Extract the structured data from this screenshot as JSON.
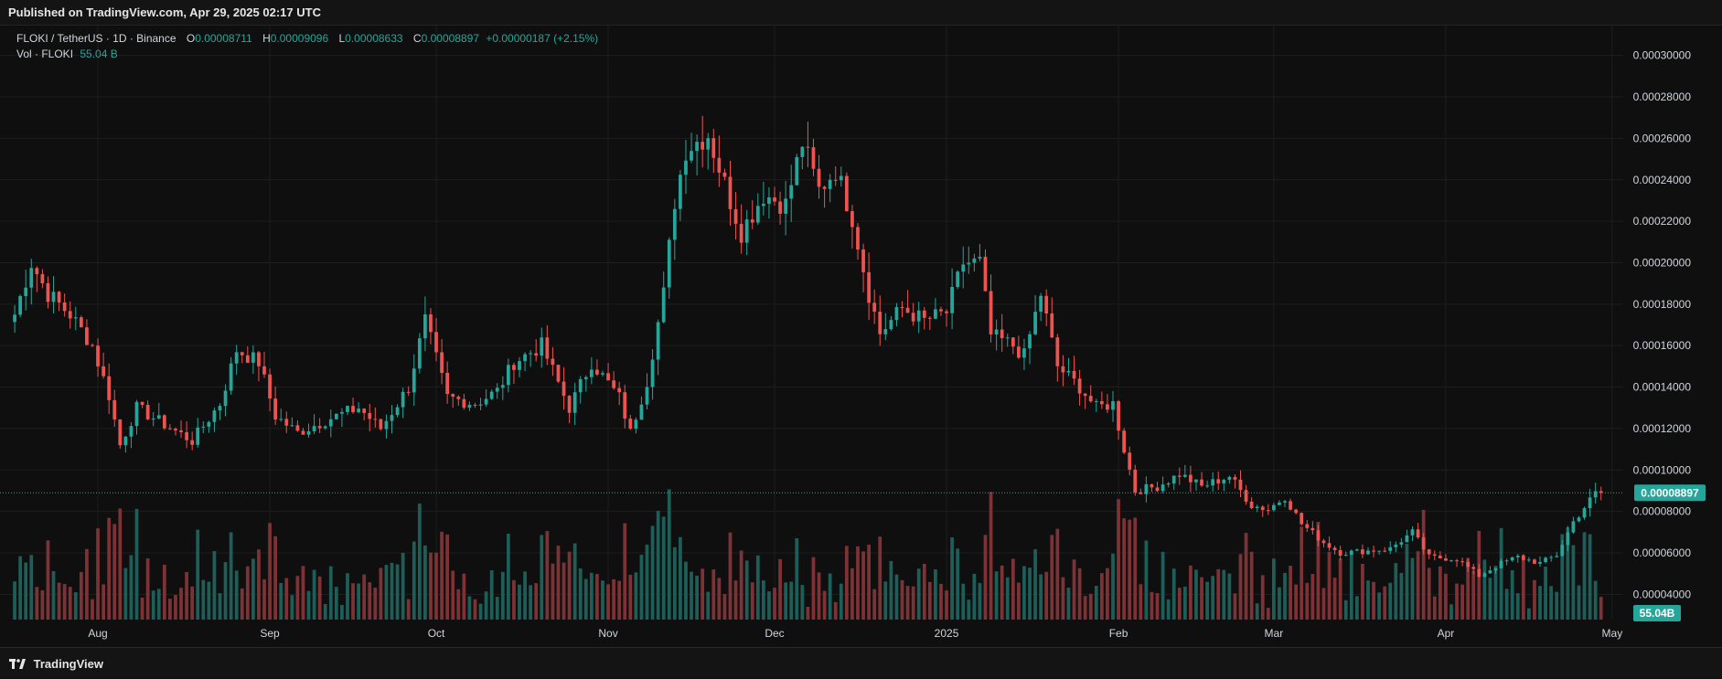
{
  "header": {
    "published": "Published on TradingView.com, Apr 29, 2025 02:17 UTC"
  },
  "legend": {
    "symbol": "FLOKI / TetherUS · 1D · Binance",
    "o_label": "O",
    "o_value": "0.00008711",
    "h_label": "H",
    "h_value": "0.00009096",
    "l_label": "L",
    "l_value": "0.00008633",
    "c_label": "C",
    "c_value": "0.00008897",
    "change": "+0.00000187 (+2.15%)",
    "vol_label": "Vol · FLOKI",
    "vol_value": "55.04 B"
  },
  "footer": {
    "brand": "TradingView"
  },
  "colors": {
    "up": "#26a69a",
    "down": "#ef5350",
    "up_vol": "#1e5e59",
    "down_vol": "#7d3235",
    "bg": "#0f0f0f",
    "grid": "#1e1e1e",
    "axis_text": "#d1d4dc"
  },
  "chart_data": {
    "type": "candlestick",
    "title": "FLOKI / TetherUS · 1D · Binance",
    "x_labels": [
      "Aug",
      "Sep",
      "Oct",
      "Nov",
      "Dec",
      "2025",
      "Feb",
      "Mar",
      "Apr",
      "May"
    ],
    "y_ticks": [
      "0.00004000",
      "0.00006000",
      "0.00008000",
      "0.00010000",
      "0.00012000",
      "0.00014000",
      "0.00016000",
      "0.00018000",
      "0.00020000",
      "0.00022000",
      "0.00024000",
      "0.00026000",
      "0.00028000",
      "0.00030000"
    ],
    "ylim": [
      3e-05,
      0.00031
    ],
    "x_range": [
      "2024-07-16",
      "2025-05-03"
    ],
    "last_price": "0.00008897",
    "last_volume": "55.04B",
    "grid": true,
    "close_series": [
      {
        "date": "2024-07-17",
        "close": 0.000175
      },
      {
        "date": "2024-07-20",
        "close": 0.0002
      },
      {
        "date": "2024-07-23",
        "close": 0.000185
      },
      {
        "date": "2024-07-27",
        "close": 0.000175
      },
      {
        "date": "2024-07-31",
        "close": 0.00016
      },
      {
        "date": "2024-08-03",
        "close": 0.000136
      },
      {
        "date": "2024-08-05",
        "close": 0.000112
      },
      {
        "date": "2024-08-08",
        "close": 0.00013
      },
      {
        "date": "2024-08-13",
        "close": 0.000122
      },
      {
        "date": "2024-08-18",
        "close": 0.000114
      },
      {
        "date": "2024-08-23",
        "close": 0.000132
      },
      {
        "date": "2024-08-26",
        "close": 0.000158
      },
      {
        "date": "2024-08-30",
        "close": 0.000152
      },
      {
        "date": "2024-09-02",
        "close": 0.000126
      },
      {
        "date": "2024-09-06",
        "close": 0.000118
      },
      {
        "date": "2024-09-12",
        "close": 0.000125
      },
      {
        "date": "2024-09-17",
        "close": 0.00013
      },
      {
        "date": "2024-09-21",
        "close": 0.00012
      },
      {
        "date": "2024-09-26",
        "close": 0.00014
      },
      {
        "date": "2024-09-29",
        "close": 0.000172
      },
      {
        "date": "2024-10-03",
        "close": 0.000135
      },
      {
        "date": "2024-10-08",
        "close": 0.000132
      },
      {
        "date": "2024-10-12",
        "close": 0.000138
      },
      {
        "date": "2024-10-15",
        "close": 0.000152
      },
      {
        "date": "2024-10-20",
        "close": 0.00016
      },
      {
        "date": "2024-10-25",
        "close": 0.00013
      },
      {
        "date": "2024-10-29",
        "close": 0.000152
      },
      {
        "date": "2024-11-03",
        "close": 0.000135
      },
      {
        "date": "2024-11-05",
        "close": 0.000118
      },
      {
        "date": "2024-11-08",
        "close": 0.000143
      },
      {
        "date": "2024-11-11",
        "close": 0.000185
      },
      {
        "date": "2024-11-13",
        "close": 0.00023
      },
      {
        "date": "2024-11-15",
        "close": 0.000255
      },
      {
        "date": "2024-11-19",
        "close": 0.000262
      },
      {
        "date": "2024-11-23",
        "close": 0.00023
      },
      {
        "date": "2024-11-25",
        "close": 0.000215
      },
      {
        "date": "2024-11-29",
        "close": 0.000233
      },
      {
        "date": "2024-12-03",
        "close": 0.000228
      },
      {
        "date": "2024-12-06",
        "close": 0.000258
      },
      {
        "date": "2024-12-09",
        "close": 0.000235
      },
      {
        "date": "2024-12-12",
        "close": 0.000245
      },
      {
        "date": "2024-12-15",
        "close": 0.000222
      },
      {
        "date": "2024-12-18",
        "close": 0.000185
      },
      {
        "date": "2024-12-20",
        "close": 0.000166
      },
      {
        "date": "2024-12-24",
        "close": 0.000178
      },
      {
        "date": "2024-12-28",
        "close": 0.000172
      },
      {
        "date": "2025-01-01",
        "close": 0.000176
      },
      {
        "date": "2025-01-04",
        "close": 0.0002
      },
      {
        "date": "2025-01-07",
        "close": 0.0002
      },
      {
        "date": "2025-01-09",
        "close": 0.000165
      },
      {
        "date": "2025-01-13",
        "close": 0.00016
      },
      {
        "date": "2025-01-15",
        "close": 0.000155
      },
      {
        "date": "2025-01-18",
        "close": 0.000185
      },
      {
        "date": "2025-01-21",
        "close": 0.00015
      },
      {
        "date": "2025-01-25",
        "close": 0.00014
      },
      {
        "date": "2025-01-28",
        "close": 0.00013
      },
      {
        "date": "2025-01-31",
        "close": 0.000132
      },
      {
        "date": "2025-02-02",
        "close": 0.00011
      },
      {
        "date": "2025-02-04",
        "close": 9e-05
      },
      {
        "date": "2025-02-08",
        "close": 9.2e-05
      },
      {
        "date": "2025-02-12",
        "close": 9.8e-05
      },
      {
        "date": "2025-02-16",
        "close": 9.2e-05
      },
      {
        "date": "2025-02-21",
        "close": 9.7e-05
      },
      {
        "date": "2025-02-25",
        "close": 8.3e-05
      },
      {
        "date": "2025-02-28",
        "close": 8.1e-05
      },
      {
        "date": "2025-03-03",
        "close": 8.7e-05
      },
      {
        "date": "2025-03-06",
        "close": 7.4e-05
      },
      {
        "date": "2025-03-10",
        "close": 6.5e-05
      },
      {
        "date": "2025-03-13",
        "close": 6e-05
      },
      {
        "date": "2025-03-18",
        "close": 6.1e-05
      },
      {
        "date": "2025-03-22",
        "close": 6.2e-05
      },
      {
        "date": "2025-03-26",
        "close": 7e-05
      },
      {
        "date": "2025-03-29",
        "close": 5.8e-05
      },
      {
        "date": "2025-04-03",
        "close": 5.7e-05
      },
      {
        "date": "2025-04-07",
        "close": 4.9e-05
      },
      {
        "date": "2025-04-11",
        "close": 5.5e-05
      },
      {
        "date": "2025-04-14",
        "close": 5.8e-05
      },
      {
        "date": "2025-04-18",
        "close": 5.5e-05
      },
      {
        "date": "2025-04-21",
        "close": 5.9e-05
      },
      {
        "date": "2025-04-24",
        "close": 7.5e-05
      },
      {
        "date": "2025-04-26",
        "close": 8.2e-05
      },
      {
        "date": "2025-04-28",
        "close": 8.87e-05
      },
      {
        "date": "2025-04-29",
        "close": 8.897e-05
      }
    ]
  }
}
